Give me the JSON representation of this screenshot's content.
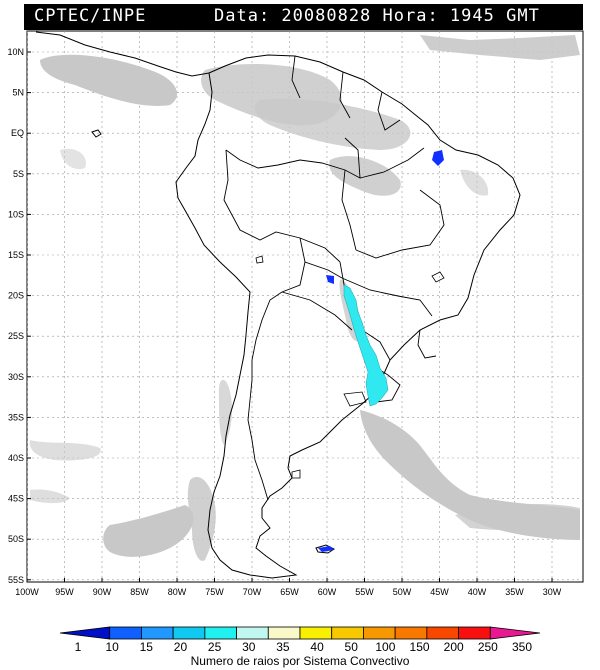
{
  "header": {
    "source": "CPTEC/INPE",
    "datetime": "Data: 20080828 Hora: 1945 GMT"
  },
  "map": {
    "lat_labels": [
      "10N",
      "5N",
      "EQ",
      "5S",
      "10S",
      "15S",
      "20S",
      "25S",
      "30S",
      "35S",
      "40S",
      "45S",
      "50S",
      "55S"
    ],
    "lon_labels": [
      "100W",
      "95W",
      "90W",
      "85W",
      "80W",
      "75W",
      "70W",
      "65W",
      "60W",
      "55W",
      "50W",
      "45W",
      "40W",
      "35W",
      "30W"
    ],
    "cloud_color": "#c8c8c8",
    "lightning_colors": {
      "blue": "#1030ff",
      "cyan": "#30e8f0"
    }
  },
  "legend": {
    "title": "Numero de raios por Sistema Convectivo",
    "ticks": [
      "1",
      "10",
      "15",
      "20",
      "25",
      "30",
      "35",
      "40",
      "50",
      "100",
      "150",
      "200",
      "250",
      "350"
    ],
    "colors": [
      "#0010c8",
      "#1060ff",
      "#2098ff",
      "#10c8f0",
      "#20f0f0",
      "#c0f8f0",
      "#f8f8c8",
      "#f8f000",
      "#f8c800",
      "#f89800",
      "#f87800",
      "#f84800",
      "#f81010",
      "#e81890"
    ]
  }
}
